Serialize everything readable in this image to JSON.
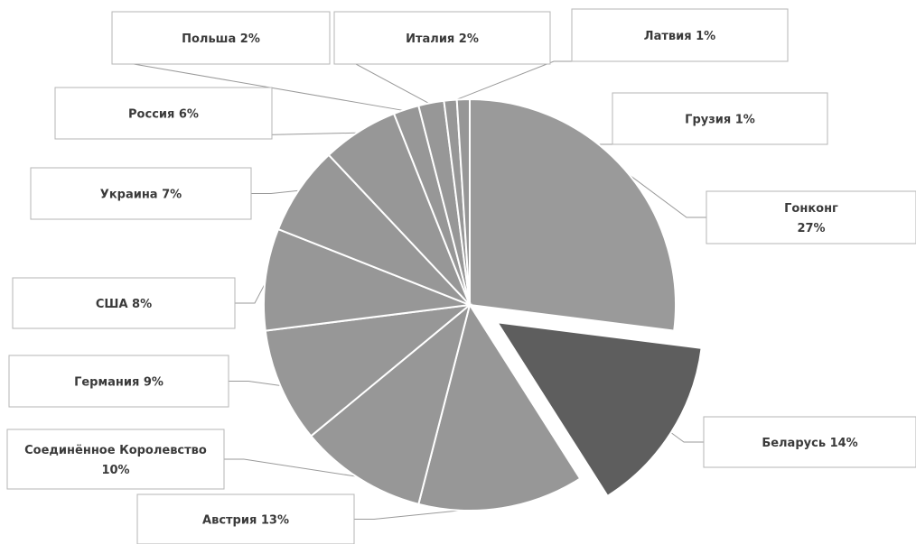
{
  "chart_data": {
    "type": "pie",
    "title": "",
    "exploded": "Беларусь",
    "slices": [
      {
        "label": "Гонконг",
        "label_lines": [
          "Гонконг",
          "27%"
        ],
        "value": 27,
        "color": "#9a9a9a"
      },
      {
        "label": "Беларусь",
        "label_lines": [
          "Беларусь 14%"
        ],
        "value": 14,
        "color": "#5e5e5e"
      },
      {
        "label": "Австрия",
        "label_lines": [
          "Австрия 13%"
        ],
        "value": 13,
        "color": "#979797"
      },
      {
        "label": "Соединённое Королевство",
        "label_lines": [
          "Соединённое Королевство",
          "10%"
        ],
        "value": 10,
        "color": "#979797"
      },
      {
        "label": "Германия",
        "label_lines": [
          "Германия 9%"
        ],
        "value": 9,
        "color": "#979797"
      },
      {
        "label": "США",
        "label_lines": [
          "США 8%"
        ],
        "value": 8,
        "color": "#979797"
      },
      {
        "label": "Украина",
        "label_lines": [
          "Украина 7%"
        ],
        "value": 7,
        "color": "#979797"
      },
      {
        "label": "Россия",
        "label_lines": [
          "Россия 6%"
        ],
        "value": 6,
        "color": "#979797"
      },
      {
        "label": "Польша",
        "label_lines": [
          "Польша 2%"
        ],
        "value": 2,
        "color": "#979797"
      },
      {
        "label": "Италия",
        "label_lines": [
          "Италия 2%"
        ],
        "value": 2,
        "color": "#979797"
      },
      {
        "label": "Латвия",
        "label_lines": [
          "Латвия 1%"
        ],
        "value": 1,
        "color": "#979797"
      },
      {
        "label": "Грузия",
        "label_lines": [
          "Грузия 1%"
        ],
        "value": 1,
        "color": "#979797"
      }
    ]
  }
}
